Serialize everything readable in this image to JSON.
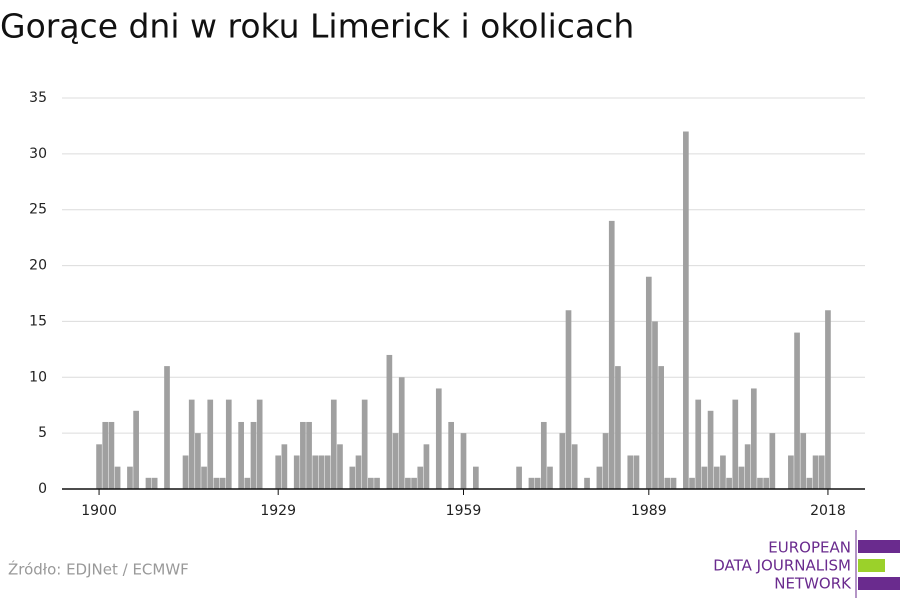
{
  "chart_data": {
    "type": "bar",
    "title": "Gorące dni w roku Limerick i okolicach",
    "source": "Źródło: EDJNet / ECMWF",
    "logo": [
      "EUROPEAN",
      "DATA JOURNALISM",
      "NETWORK"
    ],
    "color": "#a0a0a0",
    "grid": true,
    "x": [
      1900,
      1901,
      1902,
      1903,
      1904,
      1905,
      1906,
      1907,
      1908,
      1909,
      1910,
      1911,
      1912,
      1913,
      1914,
      1915,
      1916,
      1917,
      1918,
      1919,
      1920,
      1921,
      1922,
      1923,
      1924,
      1925,
      1926,
      1927,
      1928,
      1929,
      1930,
      1931,
      1932,
      1933,
      1934,
      1935,
      1936,
      1937,
      1938,
      1939,
      1940,
      1941,
      1942,
      1943,
      1944,
      1945,
      1946,
      1947,
      1948,
      1949,
      1950,
      1951,
      1952,
      1953,
      1954,
      1955,
      1956,
      1957,
      1958,
      1959,
      1960,
      1961,
      1962,
      1963,
      1964,
      1965,
      1966,
      1967,
      1968,
      1969,
      1970,
      1971,
      1972,
      1973,
      1974,
      1975,
      1976,
      1977,
      1978,
      1979,
      1980,
      1981,
      1982,
      1983,
      1984,
      1985,
      1986,
      1987,
      1988,
      1989,
      1990,
      1991,
      1992,
      1993,
      1994,
      1995,
      1996,
      1997,
      1998,
      1999,
      2000,
      2001,
      2002,
      2003,
      2004,
      2005,
      2006,
      2007,
      2008,
      2009,
      2010,
      2011,
      2012,
      2013,
      2014,
      2015,
      2016,
      2017,
      2018
    ],
    "values": [
      4,
      6,
      6,
      2,
      0,
      2,
      7,
      0,
      1,
      1,
      0,
      11,
      0,
      0,
      3,
      8,
      5,
      2,
      8,
      1,
      1,
      8,
      0,
      6,
      1,
      6,
      8,
      0,
      0,
      3,
      4,
      0,
      3,
      6,
      6,
      3,
      3,
      3,
      8,
      4,
      0,
      2,
      3,
      8,
      1,
      1,
      0,
      12,
      5,
      10,
      1,
      1,
      2,
      4,
      0,
      9,
      0,
      6,
      0,
      5,
      0,
      2,
      0,
      0,
      0,
      0,
      0,
      0,
      2,
      0,
      1,
      1,
      6,
      2,
      0,
      5,
      16,
      4,
      0,
      1,
      0,
      2,
      5,
      24,
      11,
      0,
      3,
      3,
      0,
      19,
      15,
      11,
      1,
      1,
      0,
      32,
      1,
      8,
      2,
      7,
      2,
      3,
      1,
      8,
      2,
      4,
      9,
      1,
      1,
      5,
      0,
      0,
      3,
      14,
      5,
      1,
      3,
      3,
      16
    ],
    "xlim": [
      1894,
      2024
    ],
    "xticks": [
      1900,
      1929,
      1959,
      1989,
      2018
    ],
    "ylim": [
      0,
      35
    ],
    "yticks": [
      0,
      5,
      10,
      15,
      20,
      25,
      30,
      35
    ]
  }
}
